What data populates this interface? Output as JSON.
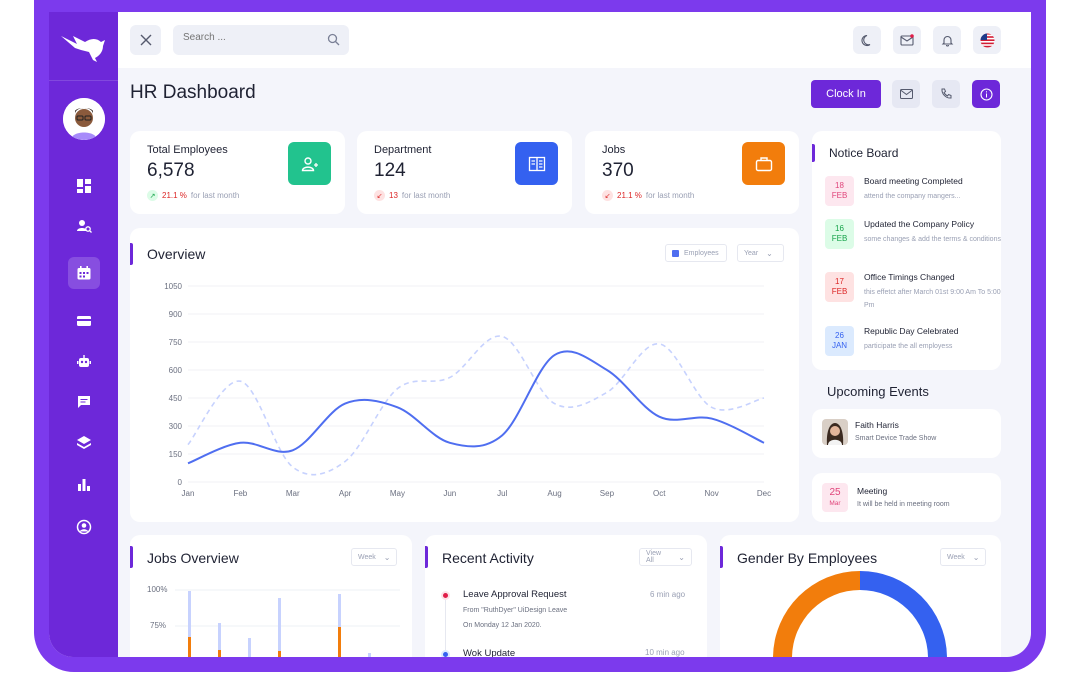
{
  "topbar": {
    "search_placeholder": "Search ..."
  },
  "header": {
    "title": "HR Dashboard",
    "clock_in_label": "Clock In"
  },
  "stats": [
    {
      "label": "Total Employees",
      "value": "6,578",
      "change": "21.1 %",
      "change_text": "for last month",
      "direction": "up",
      "icon": "users-icon",
      "color": "#22c38e"
    },
    {
      "label": "Department",
      "value": "124",
      "change": "13",
      "change_text": "for last month",
      "direction": "down",
      "icon": "building-icon",
      "color": "#3461f0"
    },
    {
      "label": "Jobs",
      "value": "370",
      "change": "21.1 %",
      "change_text": "for last month",
      "direction": "down",
      "icon": "briefcase-icon",
      "color": "#f27d0c"
    }
  ],
  "overview": {
    "title": "Overview",
    "legend_label": "Employees",
    "period_select": "Year"
  },
  "chart_data": {
    "type": "line",
    "categories": [
      "Jan",
      "Feb",
      "Mar",
      "Apr",
      "May",
      "Jun",
      "Jul",
      "Aug",
      "Sep",
      "Oct",
      "Nov",
      "Dec"
    ],
    "series": [
      {
        "name": "Employees",
        "style": "solid",
        "color": "#4f6ef0",
        "values": [
          100,
          210,
          170,
          420,
          400,
          210,
          250,
          680,
          600,
          350,
          340,
          210
        ]
      },
      {
        "style": "dashed",
        "color": "#c7d2fe",
        "values": [
          200,
          540,
          80,
          110,
          500,
          560,
          780,
          420,
          480,
          740,
          400,
          450
        ]
      }
    ],
    "y_ticks": [
      "1050",
      "900",
      "750",
      "600",
      "450",
      "300",
      "150",
      "0"
    ],
    "ylim": [
      0,
      1050
    ],
    "grid": true
  },
  "notice_board": {
    "title": "Notice Board",
    "items": [
      {
        "day": "18",
        "month": "FEB",
        "title": "Board meeting Completed",
        "desc": "attend the company mangers...",
        "bg": "#fde7ef",
        "fg": "#e0457b"
      },
      {
        "day": "16",
        "month": "FEB",
        "title": "Updated the Company Policy",
        "desc": "some changes & add the terms & conditions",
        "bg": "#dcfce7",
        "fg": "#16a34a"
      },
      {
        "day": "17",
        "month": "FEB",
        "title": "Office Timings Changed",
        "desc": "this effetct after March 01st 9:00 Am To 5:00 Pm",
        "bg": "#fee2e2",
        "fg": "#dc2626"
      },
      {
        "day": "26",
        "month": "JAN",
        "title": "Republic Day Celebrated",
        "desc": "participate the all employess",
        "bg": "#dbeafe",
        "fg": "#3461f0"
      }
    ]
  },
  "upcoming_events": {
    "title": "Upcoming Events",
    "events": [
      {
        "name": "Faith Harris",
        "desc": "Smart Device Trade Show"
      },
      {
        "day": "25",
        "month": "Mar",
        "name": "Meeting",
        "desc": "It will be held in meeting room"
      }
    ]
  },
  "jobs_overview": {
    "title": "Jobs Overview",
    "period_select": "Week",
    "y_ticks": [
      "100%",
      "75%"
    ]
  },
  "recent_activity": {
    "title": "Recent Activity",
    "filter_select": "View All",
    "items": [
      {
        "title": "Leave Approval Request",
        "desc1": "From \"RuthDyer\" UiDesign Leave",
        "desc2": "On Monday 12 Jan 2020.",
        "time": "6 min ago",
        "color": "#e11d48"
      },
      {
        "title": "Wok Update",
        "time": "10 min ago",
        "color": "#3461f0"
      }
    ]
  },
  "gender": {
    "title": "Gender By Employees",
    "period_select": "Week",
    "colors": {
      "male": "#3461f0",
      "female": "#f27d0c"
    }
  }
}
